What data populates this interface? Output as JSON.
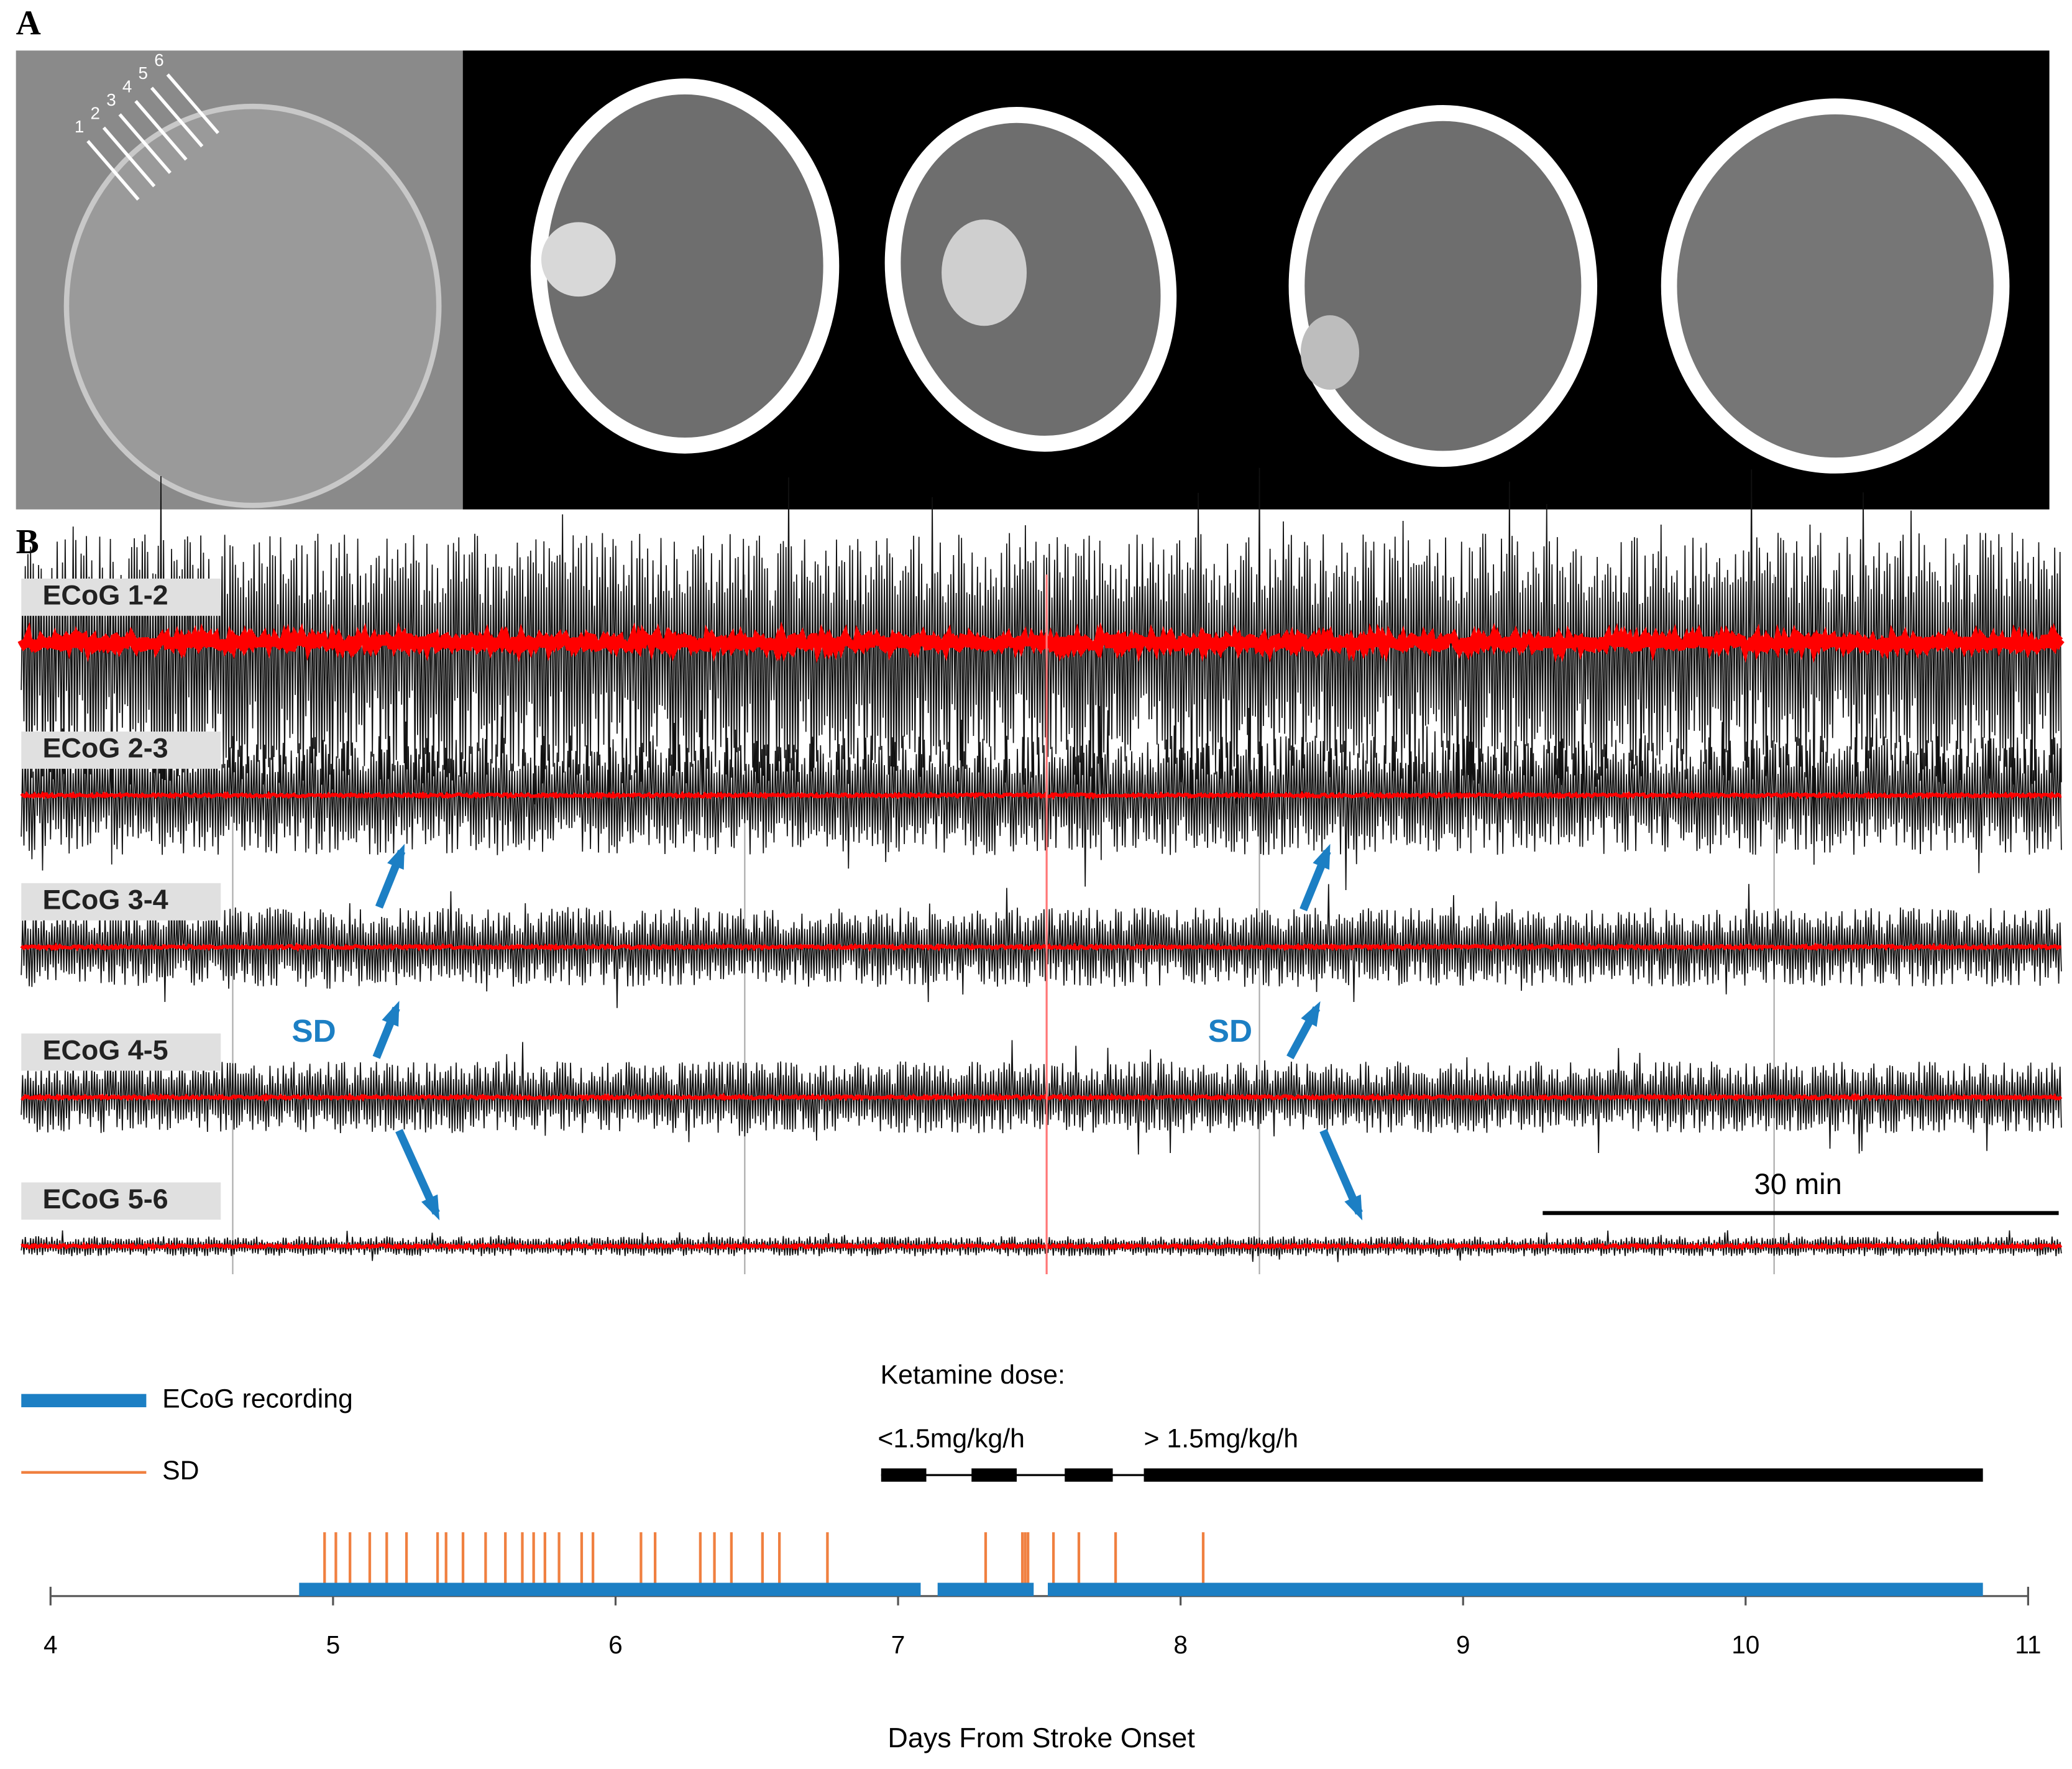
{
  "panel_a": {
    "label": "A",
    "electrode_numbers": [
      "1",
      "2",
      "3",
      "4",
      "5",
      "6"
    ]
  },
  "panel_b": {
    "label": "B",
    "traces": [
      "ECoG 1-2",
      "ECoG 2-3",
      "ECoG 3-4",
      "ECoG 4-5",
      "ECoG 5-6"
    ],
    "annotations": [
      "SD",
      "SD"
    ],
    "scale_bar": "30 min"
  },
  "chart_data": {
    "type": "timeline",
    "xlabel": "Days From Stroke Onset",
    "xlim": [
      4,
      11
    ],
    "xticks": [
      4,
      5,
      6,
      7,
      8,
      9,
      10,
      11
    ],
    "series": [
      {
        "name": "ECoG recording",
        "color": "#1c7fc4",
        "segments": [
          [
            4.88,
            7.08
          ],
          [
            7.14,
            7.48
          ],
          [
            7.53,
            10.84
          ]
        ]
      },
      {
        "name": "SD",
        "color": "#f08040",
        "events": [
          4.97,
          5.01,
          5.06,
          5.13,
          5.19,
          5.26,
          5.37,
          5.4,
          5.46,
          5.54,
          5.61,
          5.67,
          5.71,
          5.75,
          5.8,
          5.88,
          5.92,
          6.09,
          6.14,
          6.3,
          6.35,
          6.41,
          6.52,
          6.58,
          6.75,
          7.31,
          7.44,
          7.45,
          7.46,
          7.55,
          7.64,
          7.77,
          8.08
        ]
      }
    ],
    "ketamine": {
      "title": "Ketamine dose:",
      "color": "#000000",
      "low": {
        "label": "<1.5mg/kg/h",
        "span": [
          6.94,
          7.87
        ],
        "segments": [
          [
            6.94,
            7.1
          ],
          [
            7.26,
            7.42
          ],
          [
            7.59,
            7.76
          ]
        ]
      },
      "high": {
        "label": "> 1.5mg/kg/h",
        "segments": [
          [
            7.87,
            10.84
          ]
        ]
      }
    }
  }
}
